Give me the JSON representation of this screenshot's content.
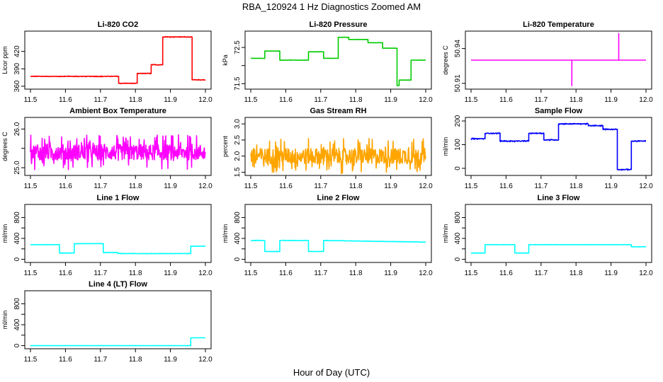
{
  "figure": {
    "title": "RBA_120924  1 Hz Diagnostics Zoomed AM",
    "xlabel": "Hour of Day (UTC)"
  },
  "chart_data": [
    {
      "type": "line",
      "title": "Li-820 CO2",
      "ylabel": "Licor ppm",
      "color": "#ff0000",
      "xlim": [
        11.5,
        12.0
      ],
      "ylim": [
        355,
        455
      ],
      "yticks": [
        360,
        390,
        420
      ],
      "yticklabels": [
        "360",
        "390",
        "420"
      ],
      "xticks": [
        11.5,
        11.6,
        11.7,
        11.8,
        11.9,
        12.0
      ],
      "xticklabels": [
        "11.5",
        "11.6",
        "11.7",
        "11.8",
        "11.9",
        "12.0"
      ],
      "series": [
        {
          "x": [
            11.5,
            11.752,
            11.752,
            11.805,
            11.805,
            11.845,
            11.845,
            11.878,
            11.878,
            11.962,
            11.962,
            12.0
          ],
          "y": [
            377,
            377,
            365,
            365,
            382,
            382,
            397,
            397,
            445,
            445,
            371,
            371
          ],
          "noise": 0.8
        }
      ]
    },
    {
      "type": "line",
      "title": "Li-820 Pressure",
      "ylabel": "kPa",
      "color": "#00cc00",
      "xlim": [
        11.5,
        12.0
      ],
      "ylim": [
        71.35,
        72.95
      ],
      "yticks": [
        71.5,
        72.0,
        72.5
      ],
      "yticklabels": [
        "71.5",
        "",
        "72.5"
      ],
      "xticks": [
        11.5,
        11.6,
        11.7,
        11.8,
        11.9,
        12.0
      ],
      "xticklabels": [
        "11.5",
        "11.6",
        "11.7",
        "11.8",
        "11.9",
        "12.0"
      ],
      "series": [
        {
          "x": [
            11.5,
            11.54,
            11.54,
            11.583,
            11.583,
            11.665,
            11.665,
            11.708,
            11.708,
            11.75,
            11.75,
            11.78,
            11.78,
            11.835,
            11.835,
            11.877,
            11.877,
            11.918,
            11.918,
            11.924,
            11.924,
            11.958,
            11.958,
            12.0
          ],
          "y": [
            72.2,
            72.2,
            72.4,
            72.4,
            72.15,
            72.15,
            72.38,
            72.38,
            72.2,
            72.2,
            72.78,
            72.78,
            72.72,
            72.72,
            72.63,
            72.63,
            72.48,
            72.48,
            71.45,
            71.45,
            71.6,
            71.6,
            72.15,
            72.15
          ],
          "noise": 0.005
        }
      ]
    },
    {
      "type": "line",
      "title": "Li-820 Temperature",
      "ylabel": "degrees C",
      "color": "#ff00ff",
      "xlim": [
        11.5,
        12.0
      ],
      "ylim": [
        50.905,
        50.955
      ],
      "yticks": [
        50.91,
        50.94
      ],
      "yticklabels": [
        "50.91",
        "50.94"
      ],
      "xticks": [
        11.5,
        11.6,
        11.7,
        11.8,
        11.9,
        12.0
      ],
      "xticklabels": [
        "11.5",
        "11.6",
        "11.7",
        "11.8",
        "11.9",
        "12.0"
      ],
      "series": [
        {
          "x": [
            11.5,
            11.788,
            11.788,
            11.788,
            11.788,
            11.922,
            11.922,
            11.922,
            11.922,
            12.0
          ],
          "y": [
            50.93,
            50.93,
            50.908,
            50.908,
            50.93,
            50.93,
            50.953,
            50.953,
            50.93,
            50.93
          ],
          "noise": 0
        }
      ]
    },
    {
      "type": "line",
      "title": "Ambient Box Temperature",
      "ylabel": "degrees C",
      "color": "#ff00ff",
      "xlim": [
        11.5,
        12.0
      ],
      "ylim": [
        24.8,
        26.3
      ],
      "yticks": [
        25.0,
        25.5,
        26.0
      ],
      "yticklabels": [
        "25.0",
        "",
        "26.0"
      ],
      "xticks": [
        11.5,
        11.6,
        11.7,
        11.8,
        11.9,
        12.0
      ],
      "xticklabels": [
        "11.5",
        "11.6",
        "11.7",
        "11.8",
        "11.9",
        "12.0"
      ],
      "series": [
        {
          "x": [
            11.5,
            12.0
          ],
          "y": [
            25.4,
            25.4
          ],
          "noise": 0.45
        }
      ]
    },
    {
      "type": "line",
      "title": "Gas Stream RH",
      "ylabel": "percent",
      "color": "#ffa500",
      "xlim": [
        11.5,
        12.0
      ],
      "ylim": [
        1.4,
        3.2
      ],
      "yticks": [
        1.5,
        2.0,
        2.5,
        3.0
      ],
      "yticklabels": [
        "1.5",
        "2.0",
        "2.5",
        "3.0"
      ],
      "xticks": [
        11.5,
        11.6,
        11.7,
        11.8,
        11.9,
        12.0
      ],
      "xticklabels": [
        "11.5",
        "11.6",
        "11.7",
        "11.8",
        "11.9",
        "12.0"
      ],
      "series": [
        {
          "x": [
            11.5,
            12.0
          ],
          "y": [
            2.0,
            2.0
          ],
          "noise": 0.55
        }
      ]
    },
    {
      "type": "line",
      "title": "Sample Flow",
      "ylabel": "ml/min",
      "color": "#0000ff",
      "xlim": [
        11.5,
        12.0
      ],
      "ylim": [
        -30,
        215
      ],
      "yticks": [
        0,
        100,
        200
      ],
      "yticklabels": [
        "0",
        "100",
        "200"
      ],
      "xticks": [
        11.5,
        11.6,
        11.7,
        11.8,
        11.9,
        12.0
      ],
      "xticklabels": [
        "11.5",
        "11.6",
        "11.7",
        "11.8",
        "11.9",
        "12.0"
      ],
      "series": [
        {
          "x": [
            11.5,
            11.54,
            11.54,
            11.583,
            11.583,
            11.665,
            11.665,
            11.708,
            11.708,
            11.75,
            11.75,
            11.835,
            11.835,
            11.877,
            11.877,
            11.918,
            11.918,
            11.958,
            11.958,
            12.0
          ],
          "y": [
            125,
            125,
            148,
            148,
            115,
            115,
            148,
            148,
            120,
            120,
            188,
            188,
            180,
            180,
            165,
            165,
            -5,
            -5,
            115,
            115
          ],
          "noise": 3
        }
      ]
    },
    {
      "type": "line",
      "title": "Line 1 Flow",
      "ylabel": "ml/min",
      "color": "#00ffff",
      "xlim": [
        11.5,
        12.0
      ],
      "ylim": [
        -60,
        1050
      ],
      "yticks": [
        0,
        200,
        400,
        600,
        800
      ],
      "yticklabels": [
        "0",
        "",
        "400",
        "",
        "800"
      ],
      "xticks": [
        11.5,
        11.6,
        11.7,
        11.8,
        11.9,
        12.0
      ],
      "xticklabels": [
        "11.5",
        "11.6",
        "11.7",
        "11.8",
        "11.9",
        "12.0"
      ],
      "series": [
        {
          "x": [
            11.5,
            11.583,
            11.583,
            11.625,
            11.625,
            11.708,
            11.708,
            11.75,
            11.75,
            11.958,
            11.958,
            12.0
          ],
          "y": [
            280,
            280,
            120,
            120,
            300,
            300,
            130,
            130,
            110,
            110,
            250,
            250
          ],
          "noise": 5
        }
      ]
    },
    {
      "type": "line",
      "title": "Line 2 Flow",
      "ylabel": "ml/min",
      "color": "#00ffff",
      "xlim": [
        11.5,
        12.0
      ],
      "ylim": [
        -60,
        1050
      ],
      "yticks": [
        0,
        200,
        400,
        600,
        800
      ],
      "yticklabels": [
        "0",
        "",
        "400",
        "",
        "800"
      ],
      "xticks": [
        11.5,
        11.6,
        11.7,
        11.8,
        11.9,
        12.0
      ],
      "xticklabels": [
        "11.5",
        "11.6",
        "11.7",
        "11.8",
        "11.9",
        "12.0"
      ],
      "series": [
        {
          "x": [
            11.5,
            11.54,
            11.54,
            11.583,
            11.583,
            11.665,
            11.665,
            11.708,
            11.708,
            12.0
          ],
          "y": [
            360,
            360,
            150,
            150,
            360,
            360,
            150,
            150,
            360,
            330
          ],
          "noise": 5
        }
      ]
    },
    {
      "type": "line",
      "title": "Line 3 Flow",
      "ylabel": "ml/min",
      "color": "#00ffff",
      "xlim": [
        11.5,
        12.0
      ],
      "ylim": [
        -60,
        1050
      ],
      "yticks": [
        0,
        200,
        400,
        600,
        800
      ],
      "yticklabels": [
        "0",
        "",
        "400",
        "",
        "800"
      ],
      "xticks": [
        11.5,
        11.6,
        11.7,
        11.8,
        11.9,
        12.0
      ],
      "xticklabels": [
        "11.5",
        "11.6",
        "11.7",
        "11.8",
        "11.9",
        "12.0"
      ],
      "series": [
        {
          "x": [
            11.5,
            11.54,
            11.54,
            11.625,
            11.625,
            11.665,
            11.665,
            11.958,
            11.958,
            12.0
          ],
          "y": [
            120,
            120,
            280,
            280,
            120,
            120,
            280,
            280,
            240,
            240
          ],
          "noise": 4
        }
      ]
    },
    {
      "type": "line",
      "title": "Line 4 (LT) Flow",
      "ylabel": "ml/min",
      "color": "#00ffff",
      "xlim": [
        11.5,
        12.0
      ],
      "ylim": [
        -60,
        1050
      ],
      "yticks": [
        0,
        200,
        400,
        600,
        800
      ],
      "yticklabels": [
        "0",
        "",
        "400",
        "",
        "800"
      ],
      "xticks": [
        11.5,
        11.6,
        11.7,
        11.8,
        11.9,
        12.0
      ],
      "xticklabels": [
        "11.5",
        "11.6",
        "11.7",
        "11.8",
        "11.9",
        "12.0"
      ],
      "series": [
        {
          "x": [
            11.5,
            11.958,
            11.958,
            12.0
          ],
          "y": [
            0,
            0,
            150,
            150
          ],
          "noise": 2
        }
      ]
    }
  ]
}
